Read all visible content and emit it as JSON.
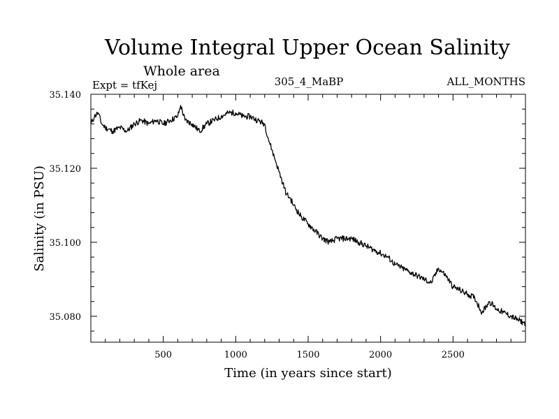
{
  "chart_data": {
    "type": "line",
    "title": "Volume Integral Upper Ocean Salinity",
    "subtitle": "Whole area",
    "header_left": "Expt = tfKej",
    "header_center": "305_4_MaBP",
    "header_right": "ALL_MONTHS",
    "xlabel": "Time (in years since start)",
    "ylabel": "Salinity (in PSU)",
    "xlim": [
      0,
      3000
    ],
    "ylim": [
      35.073,
      35.14
    ],
    "x_ticks": [
      500,
      1000,
      1500,
      2000,
      2500
    ],
    "y_ticks": [
      "35.080",
      "35.100",
      "35.120",
      "35.140"
    ],
    "y_tick_values": [
      35.08,
      35.1,
      35.12,
      35.14
    ],
    "grid": false,
    "line_color": "#000000",
    "series": [
      {
        "x": [
          0,
          25,
          50,
          75,
          100,
          150,
          200,
          250,
          300,
          350,
          400,
          450,
          500,
          550,
          600,
          620,
          650,
          700,
          750,
          800,
          850,
          900,
          950,
          1000,
          1050,
          1100,
          1150,
          1200,
          1225,
          1250,
          1275,
          1300,
          1325,
          1350,
          1375,
          1400,
          1450,
          1500,
          1550,
          1600,
          1650,
          1700,
          1750,
          1800,
          1850,
          1900,
          1950,
          2000,
          2050,
          2100,
          2150,
          2200,
          2250,
          2300,
          2350,
          2400,
          2450,
          2500,
          2550,
          2600,
          2650,
          2700,
          2750,
          2800,
          2850,
          2900,
          2950,
          3000
        ],
        "y": [
          35.132,
          35.134,
          35.135,
          35.132,
          35.131,
          35.13,
          35.131,
          35.13,
          35.132,
          35.133,
          35.132,
          35.133,
          35.132,
          35.133,
          35.134,
          35.137,
          35.133,
          35.132,
          35.13,
          35.132,
          35.133,
          35.134,
          35.135,
          35.135,
          35.134,
          35.134,
          35.133,
          35.132,
          35.128,
          35.125,
          35.122,
          35.119,
          35.116,
          35.113,
          35.112,
          35.11,
          35.107,
          35.105,
          35.103,
          35.101,
          35.1,
          35.101,
          35.101,
          35.101,
          35.1,
          35.099,
          35.098,
          35.097,
          35.096,
          35.094,
          35.093,
          35.092,
          35.091,
          35.09,
          35.089,
          35.093,
          35.091,
          35.088,
          35.087,
          35.086,
          35.085,
          35.081,
          35.084,
          35.082,
          35.081,
          35.08,
          35.079,
          35.078
        ]
      }
    ]
  }
}
